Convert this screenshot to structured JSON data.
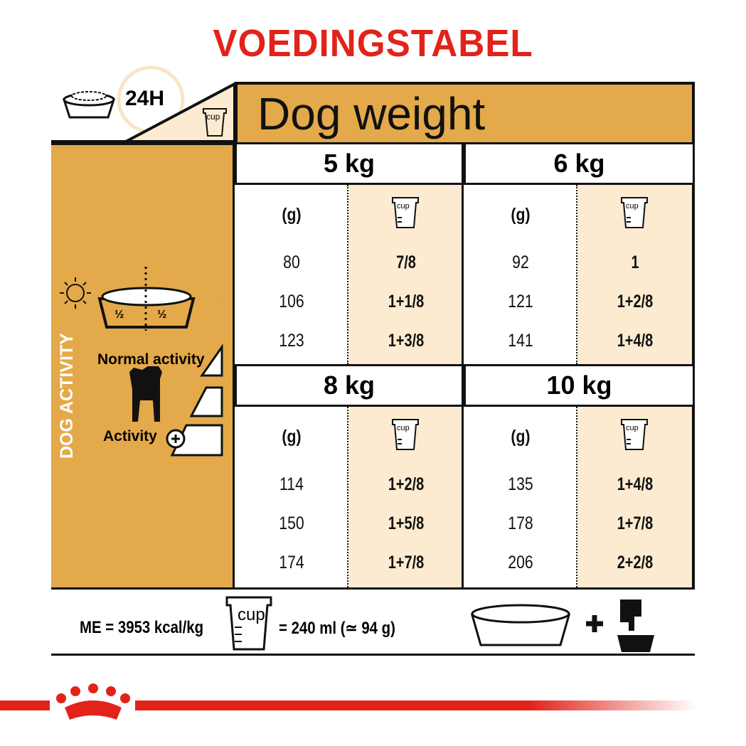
{
  "title": "VOEDINGSTABEL",
  "header": {
    "hours": "24H",
    "cup_label": "cup",
    "dog_weight": "Dog weight"
  },
  "left": {
    "half_left": "½",
    "half_right": "½",
    "vertical_label": "DOG ACTIVITY",
    "normal_activity": "Normal activity",
    "activity": "Activity"
  },
  "colors": {
    "accent": "#e4a94a",
    "cream": "#fcebd0",
    "brand_red": "#e2231a"
  },
  "table": [
    {
      "weight": "5 kg",
      "grams_header": "(g)",
      "cup_header": "cup",
      "rows": [
        {
          "g": "80",
          "cup": "7/8"
        },
        {
          "g": "106",
          "cup": "1+1/8"
        },
        {
          "g": "123",
          "cup": "1+3/8"
        }
      ]
    },
    {
      "weight": "6 kg",
      "grams_header": "(g)",
      "cup_header": "cup",
      "rows": [
        {
          "g": "92",
          "cup": "1"
        },
        {
          "g": "121",
          "cup": "1+2/8"
        },
        {
          "g": "141",
          "cup": "1+4/8"
        }
      ]
    },
    {
      "weight": "8 kg",
      "grams_header": "(g)",
      "cup_header": "cup",
      "rows": [
        {
          "g": "114",
          "cup": "1+2/8"
        },
        {
          "g": "150",
          "cup": "1+5/8"
        },
        {
          "g": "174",
          "cup": "1+7/8"
        }
      ]
    },
    {
      "weight": "10 kg",
      "grams_header": "(g)",
      "cup_header": "cup",
      "rows": [
        {
          "g": "135",
          "cup": "1+4/8"
        },
        {
          "g": "178",
          "cup": "1+7/8"
        },
        {
          "g": "206",
          "cup": "2+2/8"
        }
      ]
    }
  ],
  "footer": {
    "me": "ME = 3953 kcal/kg",
    "cup_label": "cup",
    "cup_equiv": "= 240 ml (≃ 94 g)",
    "plus": "+"
  }
}
